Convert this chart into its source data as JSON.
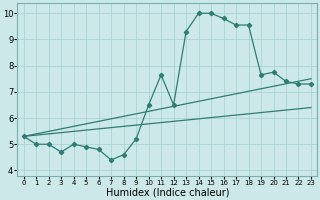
{
  "xlabel": "Humidex (Indice chaleur)",
  "bg_color": "#cce8e8",
  "line_color": "#2e7d72",
  "xlim": [
    -0.5,
    23.5
  ],
  "ylim": [
    3.8,
    10.4
  ],
  "xticks": [
    0,
    1,
    2,
    3,
    4,
    5,
    6,
    7,
    8,
    9,
    10,
    11,
    12,
    13,
    14,
    15,
    16,
    17,
    18,
    19,
    20,
    21,
    22,
    23
  ],
  "yticks": [
    4,
    5,
    6,
    7,
    8,
    9,
    10
  ],
  "jagged_x": [
    0,
    1,
    2,
    3,
    4,
    5,
    6,
    7,
    8,
    9,
    10,
    11,
    12,
    13,
    14,
    15,
    16,
    17,
    18,
    19,
    20,
    21,
    22,
    23
  ],
  "jagged_y": [
    5.3,
    5.0,
    5.0,
    4.7,
    5.0,
    4.9,
    4.8,
    4.4,
    4.6,
    5.2,
    6.5,
    7.65,
    6.5,
    9.3,
    10.0,
    10.0,
    9.8,
    9.55,
    9.55,
    7.65,
    7.75,
    7.4,
    7.3,
    7.3
  ],
  "line1_x": [
    0,
    23
  ],
  "line1_y": [
    5.3,
    7.5
  ],
  "line2_x": [
    0,
    23
  ],
  "line2_y": [
    5.3,
    6.4
  ],
  "grid_color": "#aad4d4",
  "tick_fontsize": 6,
  "xlabel_fontsize": 7
}
